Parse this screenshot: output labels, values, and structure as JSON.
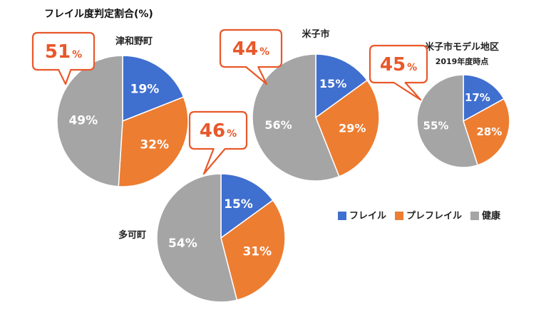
{
  "chart_data": {
    "type": "pie",
    "title": "フレイル度判定割合(%)",
    "legend": {
      "placement": "right",
      "entries": [
        {
          "name": "フレイル",
          "color": "#3f6fcf"
        },
        {
          "name": "プレフレイル",
          "color": "#ed7d31"
        },
        {
          "name": "健康",
          "color": "#a5a5a5"
        }
      ]
    },
    "charts": [
      {
        "region": "津和野町",
        "subtitle": "",
        "values": [
          19,
          32,
          49
        ],
        "value_labels": [
          "19%",
          "32%",
          "49%"
        ],
        "callout": {
          "value": "51",
          "unit": "%"
        }
      },
      {
        "region": "米子市",
        "subtitle": "",
        "values": [
          15,
          29,
          56
        ],
        "value_labels": [
          "15%",
          "29%",
          "56%"
        ],
        "callout": {
          "value": "44",
          "unit": "%"
        }
      },
      {
        "region": "米子市モデル地区",
        "subtitle": "2019年度時点",
        "values": [
          17,
          28,
          55
        ],
        "value_labels": [
          "17%",
          "28%",
          "55%"
        ],
        "callout": {
          "value": "45",
          "unit": "%"
        }
      },
      {
        "region": "多可町",
        "subtitle": "",
        "values": [
          15,
          31,
          54
        ],
        "value_labels": [
          "15%",
          "31%",
          "54%"
        ],
        "callout": {
          "value": "46",
          "unit": "%"
        }
      }
    ],
    "colors": {
      "health": "#a5a5a5",
      "prefrail": "#ed7d31",
      "frail": "#3f6fcf",
      "callout_accent": "#e8582a"
    }
  }
}
